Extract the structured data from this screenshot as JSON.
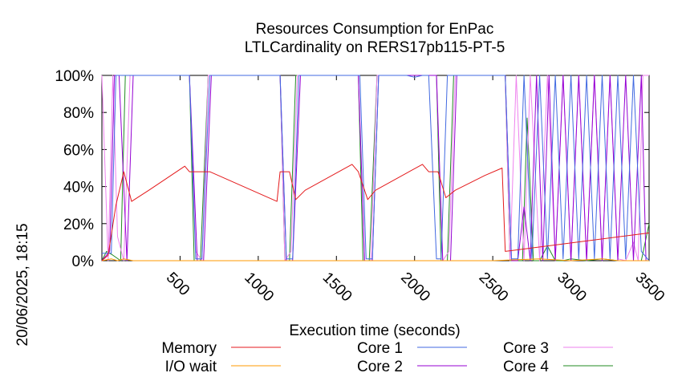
{
  "chart_data": {
    "type": "line",
    "title_line1": "Resources Consumption for EnPac",
    "title_line2": "LTLCardinality on RERS17pb115-PT-5",
    "xlabel": "Execution time (seconds)",
    "ylabel": "",
    "timestamp": "20/06/2025, 18:15",
    "xlim": [
      0,
      3500
    ],
    "ylim": [
      0,
      100
    ],
    "x_ticks": [
      500,
      1000,
      1500,
      2000,
      2500,
      3000,
      3500
    ],
    "x_tick_labels": [
      "500",
      "1000",
      "1500",
      "2000",
      "2500",
      "3000",
      "3500"
    ],
    "y_ticks": [
      0,
      20,
      40,
      60,
      80,
      100
    ],
    "y_tick_labels": [
      "0%",
      "20%",
      "40%",
      "60%",
      "80%",
      "100%"
    ],
    "legend_position": "bottom",
    "series": [
      {
        "name": "Memory",
        "color": "#e41a1c",
        "x": [
          0,
          40,
          90,
          140,
          190,
          300,
          530,
          560,
          690,
          1120,
          1140,
          1200,
          1240,
          1300,
          1600,
          1640,
          1700,
          1750,
          2050,
          2090,
          2150,
          2200,
          2260,
          2450,
          2560,
          2580,
          3500
        ],
        "y": [
          0,
          3,
          30,
          48,
          32,
          38,
          51,
          48,
          48,
          32,
          48,
          48,
          33,
          38,
          52,
          48,
          33,
          38,
          52,
          48,
          48,
          34,
          38,
          46,
          50,
          5,
          15
        ]
      },
      {
        "name": "I/O wait",
        "color": "#ff9900",
        "x": [
          0,
          60,
          100,
          140,
          200,
          500,
          1000,
          1500,
          2000,
          2500,
          2800,
          3000,
          3200,
          3300,
          3500
        ],
        "y": [
          0,
          1,
          0,
          1,
          0,
          0,
          0,
          0,
          0,
          0,
          1,
          0,
          1,
          0,
          0
        ]
      },
      {
        "name": "Core 1",
        "color": "#4169e1",
        "x": [
          0,
          60,
          90,
          130,
          170,
          560,
          600,
          640,
          690,
          1140,
          1180,
          1220,
          1260,
          1650,
          1690,
          1730,
          1770,
          1950,
          2000,
          2050,
          2090,
          2140,
          2170,
          2210,
          2250,
          2580,
          2620,
          2660,
          2700,
          2750,
          2800,
          2850,
          2900,
          2950,
          3000,
          3050,
          3100,
          3150,
          3200,
          3250,
          3300,
          3350,
          3400,
          3450,
          3500
        ],
        "y": [
          4,
          4,
          100,
          100,
          100,
          100,
          1,
          1,
          100,
          100,
          1,
          1,
          100,
          100,
          1,
          1,
          100,
          100,
          99,
          100,
          100,
          1,
          1,
          100,
          100,
          100,
          1,
          1,
          100,
          1,
          100,
          1,
          100,
          1,
          100,
          1,
          100,
          1,
          100,
          1,
          100,
          1,
          100,
          5,
          0
        ]
      },
      {
        "name": "Core 2",
        "color": "#9400d3",
        "x": [
          0,
          50,
          80,
          110,
          160,
          200,
          560,
          610,
          650,
          700,
          1140,
          1180,
          1220,
          1270,
          1640,
          1680,
          1730,
          1770,
          2140,
          2180,
          2230,
          2270,
          2580,
          2620,
          2660,
          2700,
          2740,
          2780,
          2820,
          2860,
          2900,
          2950,
          3000,
          3050,
          3100,
          3150,
          3200,
          3250,
          3300,
          3350,
          3400,
          3450,
          3480,
          3500
        ],
        "y": [
          0,
          5,
          100,
          100,
          0,
          100,
          100,
          0,
          0,
          100,
          100,
          0,
          0,
          100,
          100,
          0,
          0,
          100,
          100,
          0,
          0,
          100,
          100,
          0,
          0,
          29,
          0,
          100,
          0,
          100,
          0,
          100,
          0,
          100,
          0,
          100,
          0,
          100,
          0,
          100,
          0,
          100,
          0,
          0
        ]
      },
      {
        "name": "Core 3",
        "color": "#ee82ee",
        "x": [
          0,
          40,
          70,
          100,
          140,
          180,
          560,
          600,
          640,
          680,
          1140,
          1170,
          1210,
          1250,
          1640,
          1680,
          1720,
          1760,
          2140,
          2180,
          2220,
          2260,
          2580,
          2610,
          2650,
          2700,
          2740,
          2800,
          2850,
          2900,
          2950,
          3000,
          3050,
          3100,
          3150,
          3200,
          3250,
          3300,
          3350,
          3400,
          3430,
          3460,
          3500
        ],
        "y": [
          100,
          0,
          100,
          13,
          0,
          100,
          100,
          5,
          0,
          100,
          100,
          0,
          5,
          100,
          100,
          0,
          0,
          100,
          100,
          0,
          5,
          100,
          100,
          0,
          100,
          0,
          100,
          0,
          100,
          0,
          100,
          0,
          100,
          0,
          100,
          0,
          100,
          1,
          0,
          10,
          0,
          100,
          100
        ]
      },
      {
        "name": "Core 4",
        "color": "#228b22",
        "x": [
          0,
          30,
          70,
          120,
          150,
          560,
          590,
          630,
          680,
          1140,
          1170,
          1200,
          1240,
          1640,
          1670,
          1710,
          1760,
          2140,
          2170,
          2210,
          2250,
          2580,
          2610,
          2650,
          2690,
          2720,
          2760,
          2800,
          2850,
          2900,
          2950,
          3000,
          3100,
          3200,
          3300,
          3400,
          3450,
          3500
        ],
        "y": [
          0,
          5,
          3,
          0,
          100,
          100,
          0,
          0,
          100,
          100,
          0,
          0,
          100,
          100,
          0,
          0,
          100,
          100,
          0,
          0,
          100,
          100,
          0,
          0,
          0,
          77,
          0,
          0,
          8,
          0,
          0,
          1,
          0,
          1,
          0,
          0,
          0,
          20
        ]
      }
    ]
  }
}
